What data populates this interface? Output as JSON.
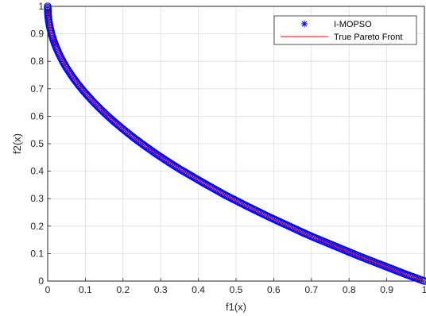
{
  "chart_data": {
    "type": "scatter",
    "title": "",
    "xlabel": "f1(x)",
    "ylabel": "f2(x)",
    "xlim": [
      0,
      1
    ],
    "ylim": [
      0,
      1
    ],
    "grid": true,
    "legend_position": "top-right",
    "x_ticks": [
      "0",
      "0.1",
      "0.2",
      "0.3",
      "0.4",
      "0.5",
      "0.6",
      "0.7",
      "0.8",
      "0.9",
      "1"
    ],
    "y_ticks": [
      "0",
      "0.1",
      "0.2",
      "0.3",
      "0.4",
      "0.5",
      "0.6",
      "0.7",
      "0.8",
      "0.9",
      "1"
    ],
    "series": [
      {
        "name": "I-MOPSO",
        "kind": "marker",
        "marker": "asterisk",
        "color": "#0000ff",
        "x": [
          0,
          0.001,
          0.003,
          0.006,
          0.01,
          0.015,
          0.02,
          0.03,
          0.04,
          0.05,
          0.065,
          0.08,
          0.1,
          0.12,
          0.14,
          0.16,
          0.18,
          0.2,
          0.23,
          0.26,
          0.29,
          0.32,
          0.35,
          0.38,
          0.41,
          0.44,
          0.47,
          0.5,
          0.53,
          0.56,
          0.59,
          0.62,
          0.65,
          0.68,
          0.71,
          0.74,
          0.77,
          0.8,
          0.83,
          0.86,
          0.89,
          0.92,
          0.95,
          0.97,
          1
        ],
        "y": [
          1,
          0.968,
          0.945,
          0.923,
          0.9,
          0.878,
          0.859,
          0.827,
          0.8,
          0.776,
          0.745,
          0.717,
          0.684,
          0.654,
          0.626,
          0.6,
          0.576,
          0.553,
          0.52,
          0.49,
          0.461,
          0.434,
          0.408,
          0.384,
          0.36,
          0.337,
          0.314,
          0.293,
          0.272,
          0.252,
          0.232,
          0.213,
          0.194,
          0.175,
          0.157,
          0.14,
          0.123,
          0.106,
          0.089,
          0.073,
          0.057,
          0.041,
          0.025,
          0.015,
          0
        ]
      },
      {
        "name": "True Pareto Front",
        "kind": "line",
        "color": "#ff0000",
        "x": [
          0,
          0.002,
          0.006,
          0.012,
          0.02,
          0.035,
          0.05,
          0.075,
          0.1,
          0.15,
          0.2,
          0.25,
          0.3,
          0.35,
          0.4,
          0.45,
          0.5,
          0.55,
          0.6,
          0.65,
          0.7,
          0.75,
          0.8,
          0.85,
          0.9,
          0.95,
          1
        ],
        "y": [
          1,
          0.955,
          0.923,
          0.89,
          0.859,
          0.813,
          0.776,
          0.726,
          0.684,
          0.613,
          0.553,
          0.5,
          0.452,
          0.408,
          0.368,
          0.329,
          0.293,
          0.258,
          0.225,
          0.194,
          0.163,
          0.134,
          0.106,
          0.078,
          0.051,
          0.025,
          0
        ]
      }
    ]
  }
}
